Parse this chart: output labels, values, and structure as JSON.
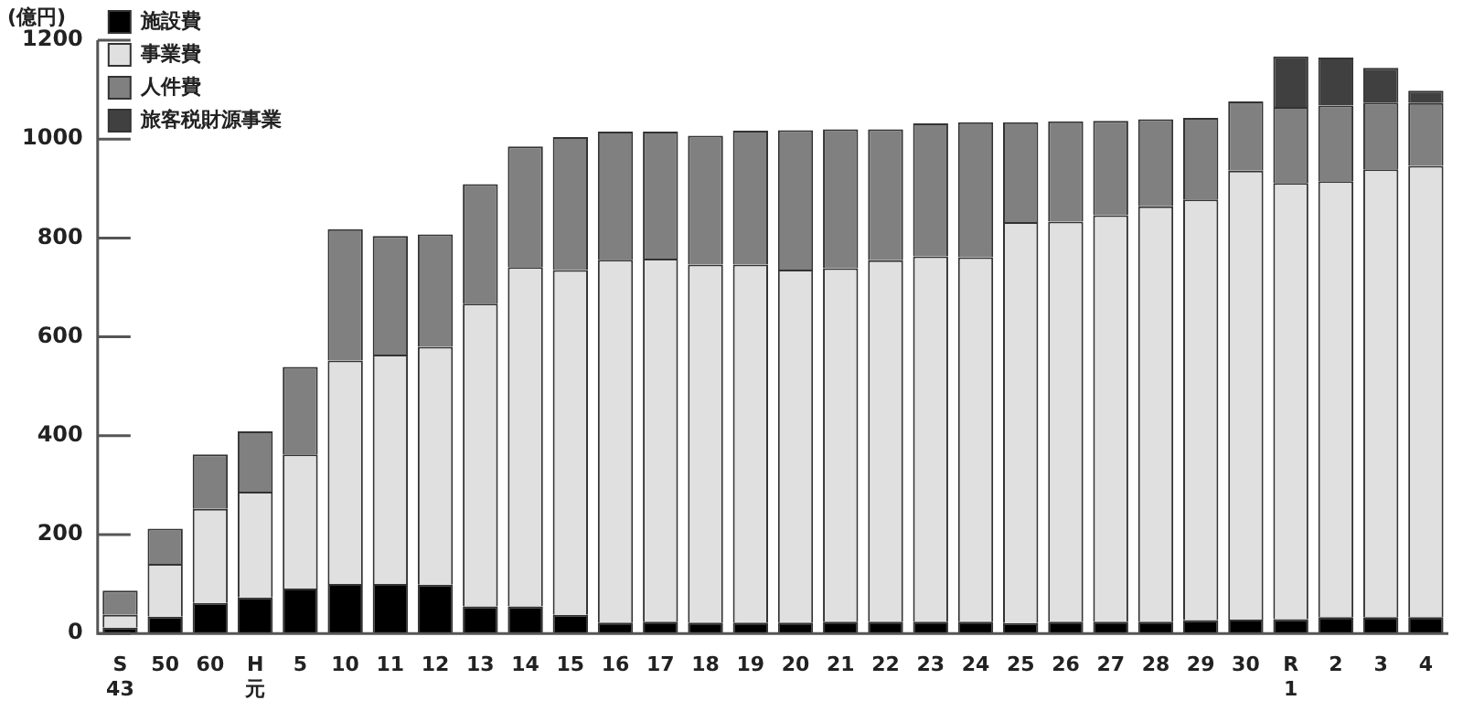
{
  "chart_data": {
    "type": "bar",
    "stacked": true,
    "ylabel": "(億円)",
    "categories": [
      "S\n43",
      "50",
      "60",
      "H\n元",
      "5",
      "10",
      "11",
      "12",
      "13",
      "14",
      "15",
      "16",
      "17",
      "18",
      "19",
      "20",
      "21",
      "22",
      "23",
      "24",
      "25",
      "26",
      "27",
      "28",
      "29",
      "30",
      "R\n1",
      "2",
      "3",
      "4"
    ],
    "series": [
      {
        "name": "施設費",
        "color": "#000000",
        "values": [
          12,
          34,
          62,
          73,
          91,
          100,
          100,
          99,
          55,
          55,
          38,
          22,
          24,
          22,
          22,
          22,
          24,
          24,
          24,
          24,
          21,
          24,
          24,
          24,
          27,
          28,
          29,
          33,
          33,
          33
        ]
      },
      {
        "name": "事業費",
        "color": "#e0e0e0",
        "values": [
          26,
          107,
          190,
          214,
          271,
          452,
          464,
          481,
          612,
          686,
          697,
          734,
          734,
          724,
          724,
          714,
          715,
          731,
          739,
          737,
          811,
          809,
          822,
          840,
          851,
          908,
          882,
          882,
          906,
          913
        ]
      },
      {
        "name": "人件費",
        "color": "#808080",
        "values": [
          49,
          71,
          110,
          122,
          177,
          266,
          240,
          227,
          242,
          244,
          269,
          259,
          257,
          261,
          271,
          282,
          281,
          265,
          269,
          273,
          202,
          203,
          191,
          176,
          165,
          140,
          154,
          153,
          135,
          127
        ]
      },
      {
        "name": "旅客税財源事業",
        "color": "#404040",
        "values": [
          null,
          null,
          null,
          null,
          null,
          null,
          null,
          null,
          null,
          null,
          null,
          null,
          null,
          null,
          null,
          null,
          null,
          null,
          null,
          null,
          null,
          null,
          null,
          null,
          null,
          null,
          102,
          97,
          70,
          25
        ]
      }
    ],
    "ylim": [
      0,
      1200
    ],
    "yticks": [
      0,
      200,
      400,
      600,
      800,
      1000,
      1200
    ],
    "legend": "top left",
    "grid": false
  }
}
